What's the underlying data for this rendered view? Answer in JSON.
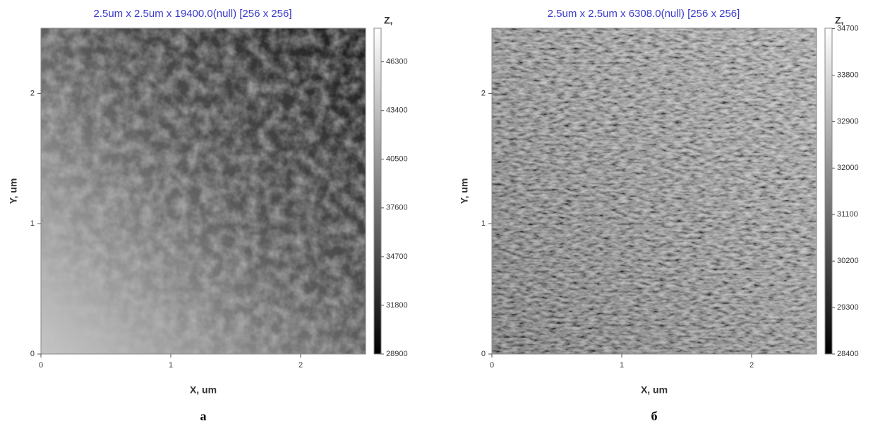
{
  "chart_data": [
    {
      "type": "image",
      "title": "2.5um x 2.5um x 19400.0(null) [256 x 256]",
      "xlabel": "X, um",
      "ylabel": "Y, um",
      "colorbar_label": "Z,",
      "caption": "а",
      "xlim": [
        0,
        2.5
      ],
      "ylim": [
        0,
        2.5
      ],
      "xticks": [
        0,
        1,
        2
      ],
      "yticks": [
        0,
        1,
        2
      ],
      "zlim": [
        28900,
        48300
      ],
      "zticks": [
        28900,
        31800,
        34700,
        37600,
        40500,
        43400,
        46300
      ]
    },
    {
      "type": "image",
      "title": "2.5um x 2.5um x 6308.0(null) [256 x 256]",
      "xlabel": "X, um",
      "ylabel": "Y, um",
      "colorbar_label": "Z,",
      "caption": "б",
      "xlim": [
        0,
        2.5
      ],
      "ylim": [
        0,
        2.5
      ],
      "xticks": [
        0,
        1,
        2
      ],
      "yticks": [
        0,
        1,
        2
      ],
      "zlim": [
        28400,
        34708
      ],
      "zticks": [
        28400,
        29300,
        30200,
        31100,
        32000,
        32900,
        33800,
        34700
      ]
    }
  ]
}
